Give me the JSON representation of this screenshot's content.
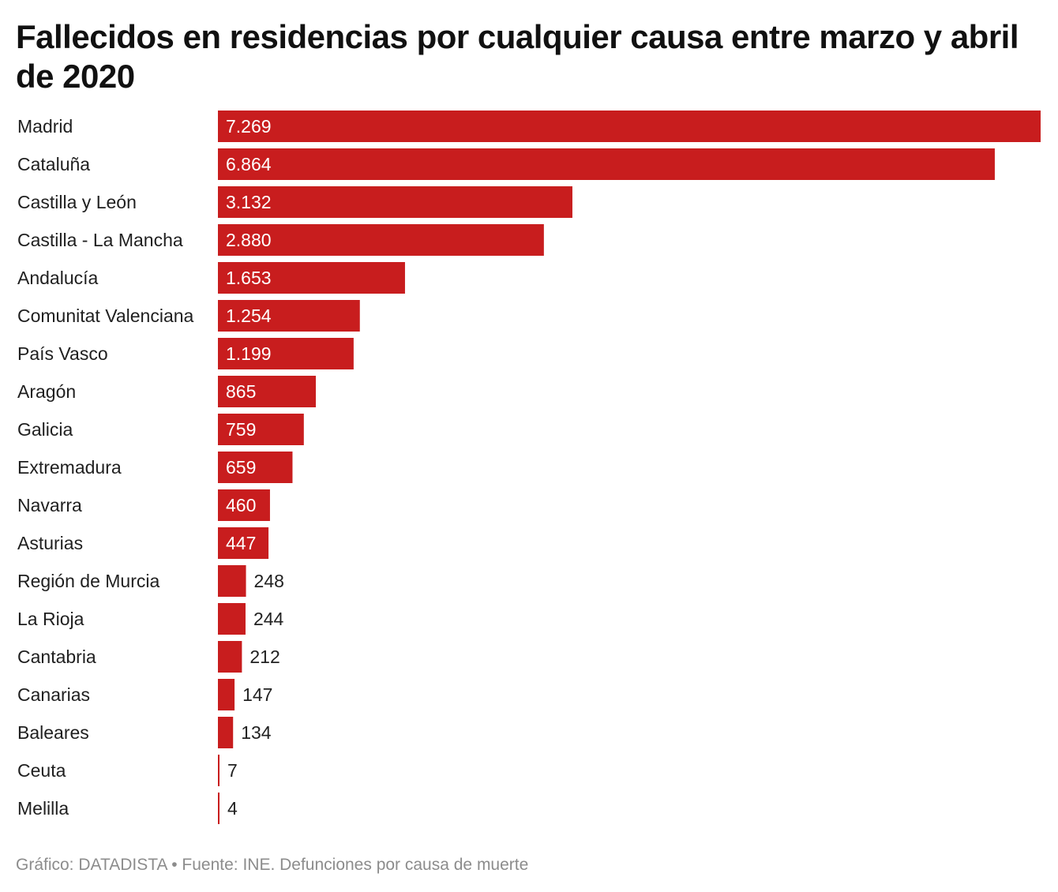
{
  "title": "Fallecidos en residencias por cualquier causa entre marzo y abril de 2020",
  "footer": "Gráfico: DATADISTA • Fuente: INE. Defunciones por causa de muerte",
  "colors": {
    "bar": "#c81d1e",
    "label_inside": "#ffffff",
    "label_outside": "#222222"
  },
  "chart_data": {
    "type": "bar",
    "orientation": "horizontal",
    "categories": [
      "Madrid",
      "Cataluña",
      "Castilla y León",
      "Castilla - La Mancha",
      "Andalucía",
      "Comunitat Valenciana",
      "País Vasco",
      "Aragón",
      "Galicia",
      "Extremadura",
      "Navarra",
      "Asturias",
      "Región de Murcia",
      "La Rioja",
      "Cantabria",
      "Canarias",
      "Baleares",
      "Ceuta",
      "Melilla"
    ],
    "values": [
      7269,
      6864,
      3132,
      2880,
      1653,
      1254,
      1199,
      865,
      759,
      659,
      460,
      447,
      248,
      244,
      212,
      147,
      134,
      7,
      4
    ],
    "value_labels": [
      "7.269",
      "6.864",
      "3.132",
      "2.880",
      "1.653",
      "1.254",
      "1.199",
      "865",
      "759",
      "659",
      "460",
      "447",
      "248",
      "244",
      "212",
      "147",
      "134",
      "7",
      "4"
    ],
    "xlim": [
      0,
      7269
    ],
    "grid": false,
    "legend": "none"
  }
}
